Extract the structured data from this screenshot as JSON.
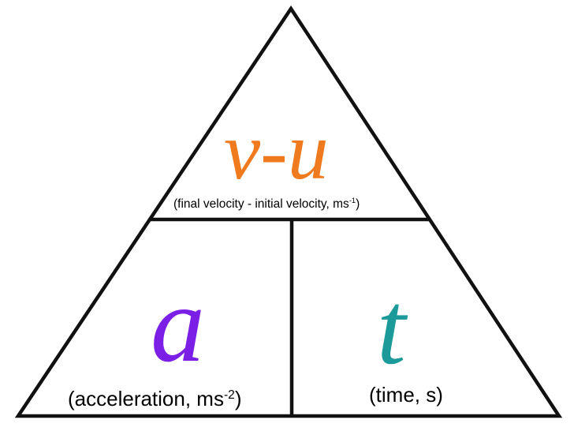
{
  "diagram": {
    "top": {
      "symbol": "v-u",
      "caption_text": "(final velocity - initial velocity, ms",
      "caption_exponent": "-1",
      "caption_close": ")",
      "color": "#f07a1e"
    },
    "left": {
      "symbol": "a",
      "caption_text": "(acceleration, ms",
      "caption_exponent": "-2",
      "caption_close": ")",
      "color": "#7b1fe6"
    },
    "right": {
      "symbol": "t",
      "caption_text": "(time, s)",
      "color": "#1c9a9a"
    },
    "line_color": "#111111"
  }
}
